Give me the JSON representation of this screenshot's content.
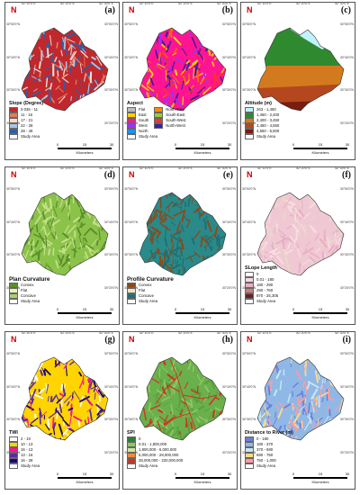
{
  "north_label": "N",
  "lon_ticks": [
    "52°10'0\"E",
    "52°20'0\"E",
    "52°30'0\"E"
  ],
  "lat_ticks": [
    "30°50'0\"N",
    "30°40'0\"N",
    "30°30'0\"N",
    "30°20'0\"N"
  ],
  "scale": {
    "values": [
      "0",
      "15",
      "30"
    ],
    "unit": "Kilometers"
  },
  "study_area": "Study Area",
  "panels": [
    {
      "id": "a",
      "label": "(a)",
      "legend_title": "Slope (Degree)",
      "columns": 1,
      "colors": [
        "#c0282d",
        "#e8795a",
        "#f6dcc8",
        "#a9c6e4",
        "#2e5ea8"
      ],
      "items": [
        {
          "label": "0.036 - 11",
          "color": "#c0282d"
        },
        {
          "label": "11 - 16",
          "color": "#e8795a"
        },
        {
          "label": "17 - 21",
          "color": "#f6dcc8"
        },
        {
          "label": "22 - 28",
          "color": "#a9c6e4"
        },
        {
          "label": "28 - 45",
          "color": "#2e5ea8"
        }
      ]
    },
    {
      "id": "b",
      "label": "(b)",
      "legend_title": "Aspect",
      "columns": 2,
      "colors": [
        "#ff1493",
        "#ff6a00",
        "#9b30ff",
        "#3a1f9e",
        "#ff3030",
        "#ffd000"
      ],
      "items": [
        {
          "label": "Flat",
          "color": "#bdbdbd"
        },
        {
          "label": "North-East",
          "color": "#ff8c00"
        },
        {
          "label": "East",
          "color": "#ffd000"
        },
        {
          "label": "South-East",
          "color": "#9acd32"
        },
        {
          "label": "South",
          "color": "#ff1493"
        },
        {
          "label": "South-West",
          "color": "#ff3030"
        },
        {
          "label": "West",
          "color": "#9b30ff"
        },
        {
          "label": "North-West",
          "color": "#3a1f9e"
        },
        {
          "label": "North",
          "color": "#1e90ff"
        }
      ]
    },
    {
      "id": "c",
      "label": "(c)",
      "legend_title": "Altitude (m)",
      "columns": 1,
      "colors": [
        "#2f8a2f",
        "#2f8a2f",
        "#d47a1e",
        "#b5471e",
        "#7a1c10"
      ],
      "items": [
        {
          "label": "263 - 1,450",
          "color": "#bff4ff"
        },
        {
          "label": "1,450 - 2,400",
          "color": "#2f8a2f"
        },
        {
          "label": "2,400 - 3,450",
          "color": "#d47a1e"
        },
        {
          "label": "3,450 - 4,550",
          "color": "#b5471e"
        },
        {
          "label": "4,550 - 5,500",
          "color": "#7a1c10"
        }
      ]
    },
    {
      "id": "d",
      "label": "(d)",
      "legend_title": "Plan Curvature",
      "columns": 1,
      "colors": [
        "#8bc34a",
        "#5a8f29",
        "#c6e08a"
      ],
      "items": [
        {
          "label": "Convex",
          "color": "#5a8f29"
        },
        {
          "label": "Flat",
          "color": "#e8f0c0"
        },
        {
          "label": "Concave",
          "color": "#a9d06a"
        }
      ]
    },
    {
      "id": "e",
      "label": "(e)",
      "legend_title": "Profile Curvature",
      "columns": 1,
      "colors": [
        "#2a8a8a",
        "#8a4b1c",
        "#1f6f73"
      ],
      "items": [
        {
          "label": "Convex",
          "color": "#8a4b1c"
        },
        {
          "label": "Flat",
          "color": "#f2e2c4"
        },
        {
          "label": "Concave",
          "color": "#1f6f73"
        }
      ]
    },
    {
      "id": "f",
      "label": "(f)",
      "legend_title": "SLope Length",
      "columns": 1,
      "colors": [
        "#f0c8d4",
        "#e6b0c2",
        "#f8dde4",
        "#e8d8c8"
      ],
      "items": [
        {
          "label": "0",
          "color": "#ffffff"
        },
        {
          "label": "0.01 - 180",
          "color": "#f4d6df"
        },
        {
          "label": "180 - 290",
          "color": "#e6b0c2"
        },
        {
          "label": "290 - 760",
          "color": "#c8807a"
        },
        {
          "label": "870 - 25,305",
          "color": "#6a1f2a"
        }
      ]
    },
    {
      "id": "g",
      "label": "(g)",
      "legend_title": "TWI",
      "columns": 1,
      "colors": [
        "#ffd400",
        "#ff1493",
        "#5a2ca0",
        "#1a0a6e",
        "#ffffff"
      ],
      "items": [
        {
          "label": "2 - 10",
          "color": "#ffffff"
        },
        {
          "label": "10 - 13",
          "color": "#ffd400"
        },
        {
          "label": "16 - 13",
          "color": "#ff1493"
        },
        {
          "label": "13 - 16",
          "color": "#5a2ca0"
        },
        {
          "label": "16 - 28",
          "color": "#1a0a6e"
        }
      ]
    },
    {
      "id": "h",
      "label": "(h)",
      "legend_title": "SPI",
      "columns": 1,
      "colors": [
        "#6ab04c",
        "#8cc864",
        "#5aa03c",
        "#d2321e"
      ],
      "items": [
        {
          "label": "0",
          "color": "#2e7d32"
        },
        {
          "label": "0.01 - 1,800,000",
          "color": "#8cc864"
        },
        {
          "label": "1,800,000 - 6,000,000",
          "color": "#cfe6a0"
        },
        {
          "label": "6,000,000 - 28,000,000",
          "color": "#f08a3c"
        },
        {
          "label": "28,000,000 - 220,000,000",
          "color": "#d2321e"
        },
        {
          "label": "Study Area",
          "color": "#ffffff"
        }
      ]
    },
    {
      "id": "i",
      "label": "(i)",
      "legend_title": "Distance to River (m)",
      "columns": 1,
      "colors": [
        "#8fb8e6",
        "#c8e6f0",
        "#ffd88a",
        "#6a7fd8",
        "#ff9aa0"
      ],
      "items": [
        {
          "label": "0 - 180",
          "color": "#6a7fd8"
        },
        {
          "label": "180 - 370",
          "color": "#8fb8e6"
        },
        {
          "label": "370 - 690",
          "color": "#c8e6f0"
        },
        {
          "label": "690 - 750",
          "color": "#ffd88a"
        },
        {
          "label": "750 - 1,000",
          "color": "#ff9aa0"
        }
      ]
    }
  ]
}
